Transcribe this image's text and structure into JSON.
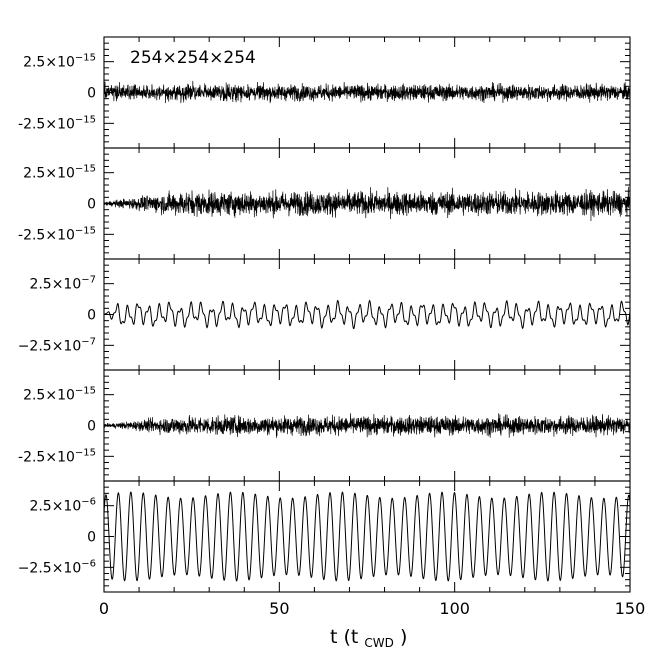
{
  "chart_data": {
    "type": "line",
    "annotation": "254×254×254",
    "xlabel_main": "t (t",
    "xlabel_sub": "CWD",
    "xlabel_close": ")",
    "xlim": [
      0,
      150
    ],
    "x_ticks": [
      0,
      50,
      100,
      150
    ],
    "x_tick_labels": [
      "0",
      "50",
      "100",
      "150"
    ],
    "grid": false,
    "panels": [
      {
        "ylim": [
          -4.5e-15,
          4.5e-15
        ],
        "ticks": [
          2.5e-15,
          0,
          -2.5e-15
        ],
        "tick_labels": [
          {
            "mant": "2.5×10",
            "exp": "−15"
          },
          {
            "mant": "0",
            "exp": ""
          },
          {
            "mant": "-2.5×10",
            "exp": "−15"
          }
        ],
        "signal": {
          "kind": "noise",
          "amplitude": 6e-16,
          "growth": "flat"
        }
      },
      {
        "ylim": [
          -4.5e-15,
          4.5e-15
        ],
        "ticks": [
          2.5e-15,
          0,
          -2.5e-15
        ],
        "tick_labels": [
          {
            "mant": "2.5×10",
            "exp": "−15"
          },
          {
            "mant": "0",
            "exp": ""
          },
          {
            "mant": "-2.5×10",
            "exp": "−15"
          }
        ],
        "signal": {
          "kind": "noise",
          "amplitude": 9e-16,
          "growth": "rising"
        }
      },
      {
        "ylim": [
          -4.5e-07,
          4.5e-07
        ],
        "ticks": [
          2.5e-07,
          0,
          -2.5e-07
        ],
        "tick_labels": [
          {
            "mant": "2.5×10",
            "exp": "−7"
          },
          {
            "mant": "0",
            "exp": ""
          },
          {
            "mant": "−2.5×10",
            "exp": "−7"
          }
        ],
        "signal": {
          "kind": "wave",
          "amplitude": 8e-08,
          "period": 3.0
        }
      },
      {
        "ylim": [
          -4.5e-15,
          4.5e-15
        ],
        "ticks": [
          2.5e-15,
          0,
          -2.5e-15
        ],
        "tick_labels": [
          {
            "mant": "2.5×10",
            "exp": "−15"
          },
          {
            "mant": "0",
            "exp": ""
          },
          {
            "mant": "-2.5×10",
            "exp": "−15"
          }
        ],
        "signal": {
          "kind": "noise",
          "amplitude": 7e-16,
          "growth": "rising"
        }
      },
      {
        "ylim": [
          -4.5e-06,
          4.5e-06
        ],
        "ticks": [
          2.5e-06,
          0,
          -2.5e-06
        ],
        "tick_labels": [
          {
            "mant": "2.5×10",
            "exp": "−6"
          },
          {
            "mant": "0",
            "exp": ""
          },
          {
            "mant": "−2.5×10",
            "exp": "−6"
          }
        ],
        "signal": {
          "kind": "oscillation",
          "amplitude": 3.6e-06,
          "period": 3.55
        }
      }
    ]
  }
}
